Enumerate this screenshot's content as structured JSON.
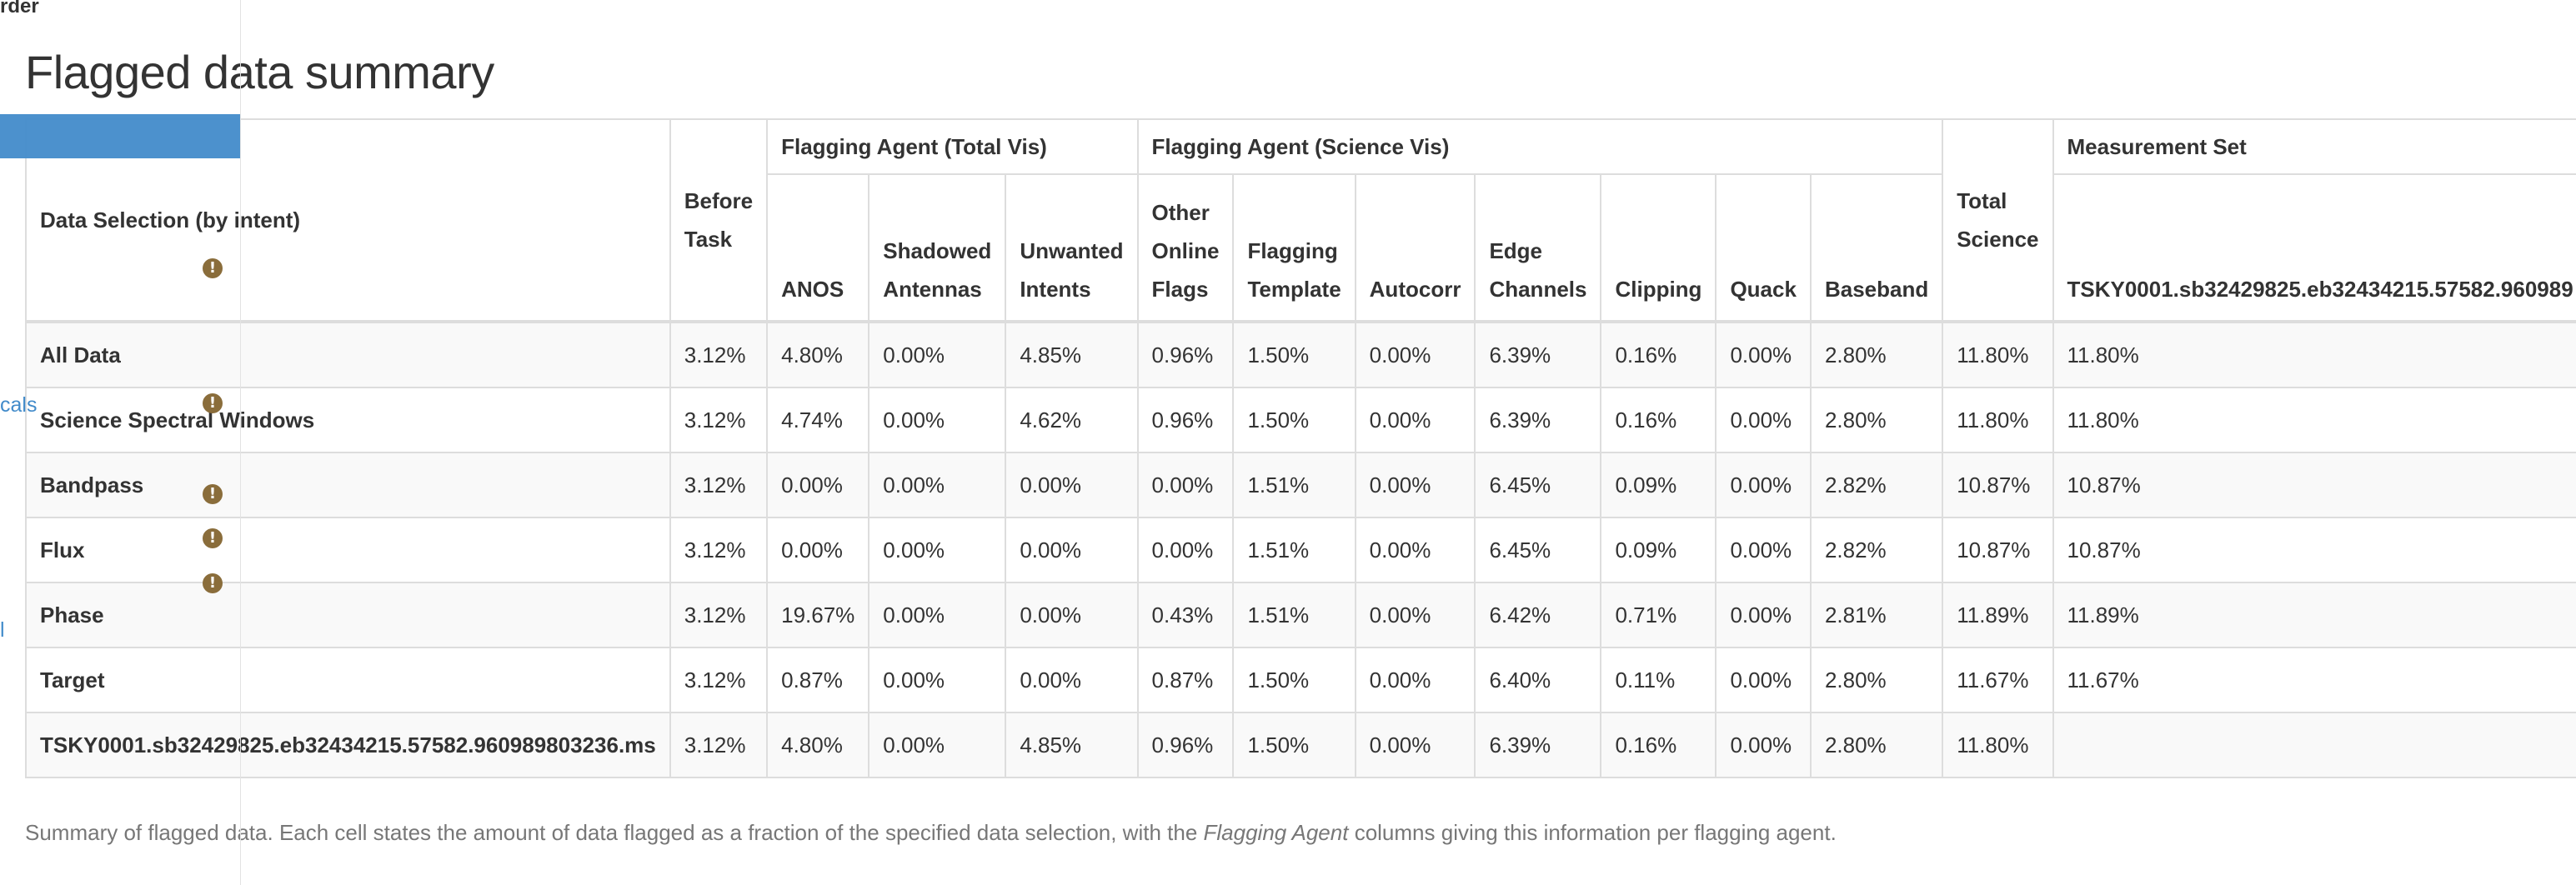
{
  "top_fragment": "rder",
  "title": "Flagged data summary",
  "sidebar": {
    "fragments": [
      "cals",
      "l"
    ]
  },
  "table": {
    "groups": {
      "total_vis": "Flagging Agent (Total Vis)",
      "science_vis": "Flagging Agent (Science Vis)",
      "measurement_set": "Measurement Set"
    },
    "columns": {
      "selection": "Data Selection (by intent)",
      "before_task": "Before Task",
      "anos": "ANOS",
      "shadowed": "Shadowed Antennas",
      "unwanted": "Unwanted Intents",
      "other_online": "Other Online Flags",
      "flagging_template": "Flagging Template",
      "autocorr": "Autocorr",
      "edge_channels": "Edge Channels",
      "clipping": "Clipping",
      "quack": "Quack",
      "baseband": "Baseband",
      "total_science": "Total Science",
      "ms_name": "TSKY0001.sb32429825.eb32434215.57582.960989"
    },
    "rows": [
      {
        "label": "All Data",
        "cells": [
          "3.12%",
          "4.80%",
          "0.00%",
          "4.85%",
          "0.96%",
          "1.50%",
          "0.00%",
          "6.39%",
          "0.16%",
          "0.00%",
          "2.80%",
          "11.80%",
          "11.80%"
        ]
      },
      {
        "label": "Science Spectral Windows",
        "cells": [
          "3.12%",
          "4.74%",
          "0.00%",
          "4.62%",
          "0.96%",
          "1.50%",
          "0.00%",
          "6.39%",
          "0.16%",
          "0.00%",
          "2.80%",
          "11.80%",
          "11.80%"
        ]
      },
      {
        "label": "Bandpass",
        "cells": [
          "3.12%",
          "0.00%",
          "0.00%",
          "0.00%",
          "0.00%",
          "1.51%",
          "0.00%",
          "6.45%",
          "0.09%",
          "0.00%",
          "2.82%",
          "10.87%",
          "10.87%"
        ]
      },
      {
        "label": "Flux",
        "cells": [
          "3.12%",
          "0.00%",
          "0.00%",
          "0.00%",
          "0.00%",
          "1.51%",
          "0.00%",
          "6.45%",
          "0.09%",
          "0.00%",
          "2.82%",
          "10.87%",
          "10.87%"
        ]
      },
      {
        "label": "Phase",
        "cells": [
          "3.12%",
          "19.67%",
          "0.00%",
          "0.00%",
          "0.43%",
          "1.51%",
          "0.00%",
          "6.42%",
          "0.71%",
          "0.00%",
          "2.81%",
          "11.89%",
          "11.89%"
        ]
      },
      {
        "label": "Target",
        "cells": [
          "3.12%",
          "0.87%",
          "0.00%",
          "0.00%",
          "0.87%",
          "1.50%",
          "0.00%",
          "6.40%",
          "0.11%",
          "0.00%",
          "2.80%",
          "11.67%",
          "11.67%"
        ]
      },
      {
        "label": "TSKY0001.sb32429825.eb32434215.57582.960989803236.ms",
        "cells": [
          "3.12%",
          "4.80%",
          "0.00%",
          "4.85%",
          "0.96%",
          "1.50%",
          "0.00%",
          "6.39%",
          "0.16%",
          "0.00%",
          "2.80%",
          "11.80%",
          ""
        ]
      }
    ]
  },
  "caption": {
    "before": "Summary of flagged data. Each cell states the amount of data flagged as a fraction of the specified data selection, with the ",
    "emphasis": "Flagging Agent",
    "after": " columns giving this information per flagging agent."
  },
  "warning_icon": {
    "glyph": "!",
    "name": "exclamation-circle-icon"
  }
}
